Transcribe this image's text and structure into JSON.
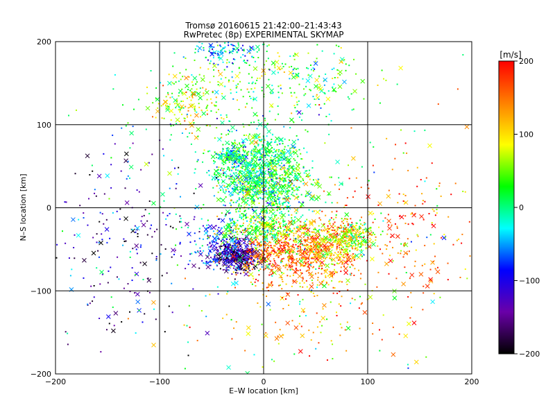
{
  "chart_data": {
    "type": "scatter",
    "title": "Tromsø 20160615 21:42:00–21:43:43",
    "subtitle": "RwPretec (8p) EXPERIMENTAL SKYMAP",
    "xlabel": "E–W location [km]",
    "ylabel": "N–S location [km]",
    "xlim": [
      -200,
      200
    ],
    "ylim": [
      -200,
      200
    ],
    "xticks": [
      "−200",
      "−100",
      "0",
      "100",
      "200"
    ],
    "yticks": [
      "−200",
      "−100",
      "0",
      "100",
      "200"
    ],
    "grid": true,
    "colorbar": {
      "label": "[m/s]",
      "range": [
        -200,
        200
      ],
      "ticks": [
        "−200",
        "−100",
        "0",
        "100",
        "200"
      ],
      "colors": [
        "#000000",
        "#6a00a8",
        "#0000ff",
        "#00ffff",
        "#00ff00",
        "#ffff00",
        "#ff8000",
        "#ff0000"
      ]
    },
    "markers": [
      "point",
      "cross"
    ],
    "clusters": [
      {
        "x": -10,
        "y": 45,
        "sx": 22,
        "sy": 26,
        "n": 900,
        "c": 5
      },
      {
        "x": 10,
        "y": 25,
        "sx": 20,
        "sy": 22,
        "n": 400,
        "c": 25
      },
      {
        "x": -30,
        "y": 62,
        "sx": 6,
        "sy": 4,
        "n": 120,
        "c": -10
      },
      {
        "x": -25,
        "y": -58,
        "sx": 10,
        "sy": 9,
        "n": 420,
        "c": -150
      },
      {
        "x": -40,
        "y": -45,
        "sx": 16,
        "sy": 14,
        "n": 200,
        "c": -90
      },
      {
        "x": 20,
        "y": -52,
        "sx": 22,
        "sy": 14,
        "n": 420,
        "c": 160
      },
      {
        "x": 65,
        "y": -45,
        "sx": 20,
        "sy": 16,
        "n": 380,
        "c": 110
      },
      {
        "x": 0,
        "y": -25,
        "sx": 20,
        "sy": 8,
        "n": 280,
        "c": 45
      },
      {
        "x": 88,
        "y": -35,
        "sx": 10,
        "sy": 10,
        "n": 160,
        "c": 60
      },
      {
        "x": 35,
        "y": -80,
        "sx": 30,
        "sy": 14,
        "n": 150,
        "c": 130
      },
      {
        "x": -70,
        "y": 130,
        "sx": 18,
        "sy": 18,
        "n": 180,
        "c": 70
      },
      {
        "x": -40,
        "y": 190,
        "sx": 18,
        "sy": 8,
        "n": 120,
        "c": -40
      },
      {
        "x": 20,
        "y": 155,
        "sx": 35,
        "sy": 25,
        "n": 240,
        "c": 25
      },
      {
        "x": -130,
        "y": -35,
        "sx": 40,
        "sy": 60,
        "n": 200,
        "c": -140
      },
      {
        "x": 130,
        "y": -30,
        "sx": 45,
        "sy": 50,
        "n": 220,
        "c": 160
      },
      {
        "x": 40,
        "y": -130,
        "sx": 55,
        "sy": 25,
        "n": 100,
        "c": 140
      },
      {
        "x": 0,
        "y": 0,
        "sx": 120,
        "sy": 120,
        "n": 300,
        "c": 0
      }
    ]
  }
}
